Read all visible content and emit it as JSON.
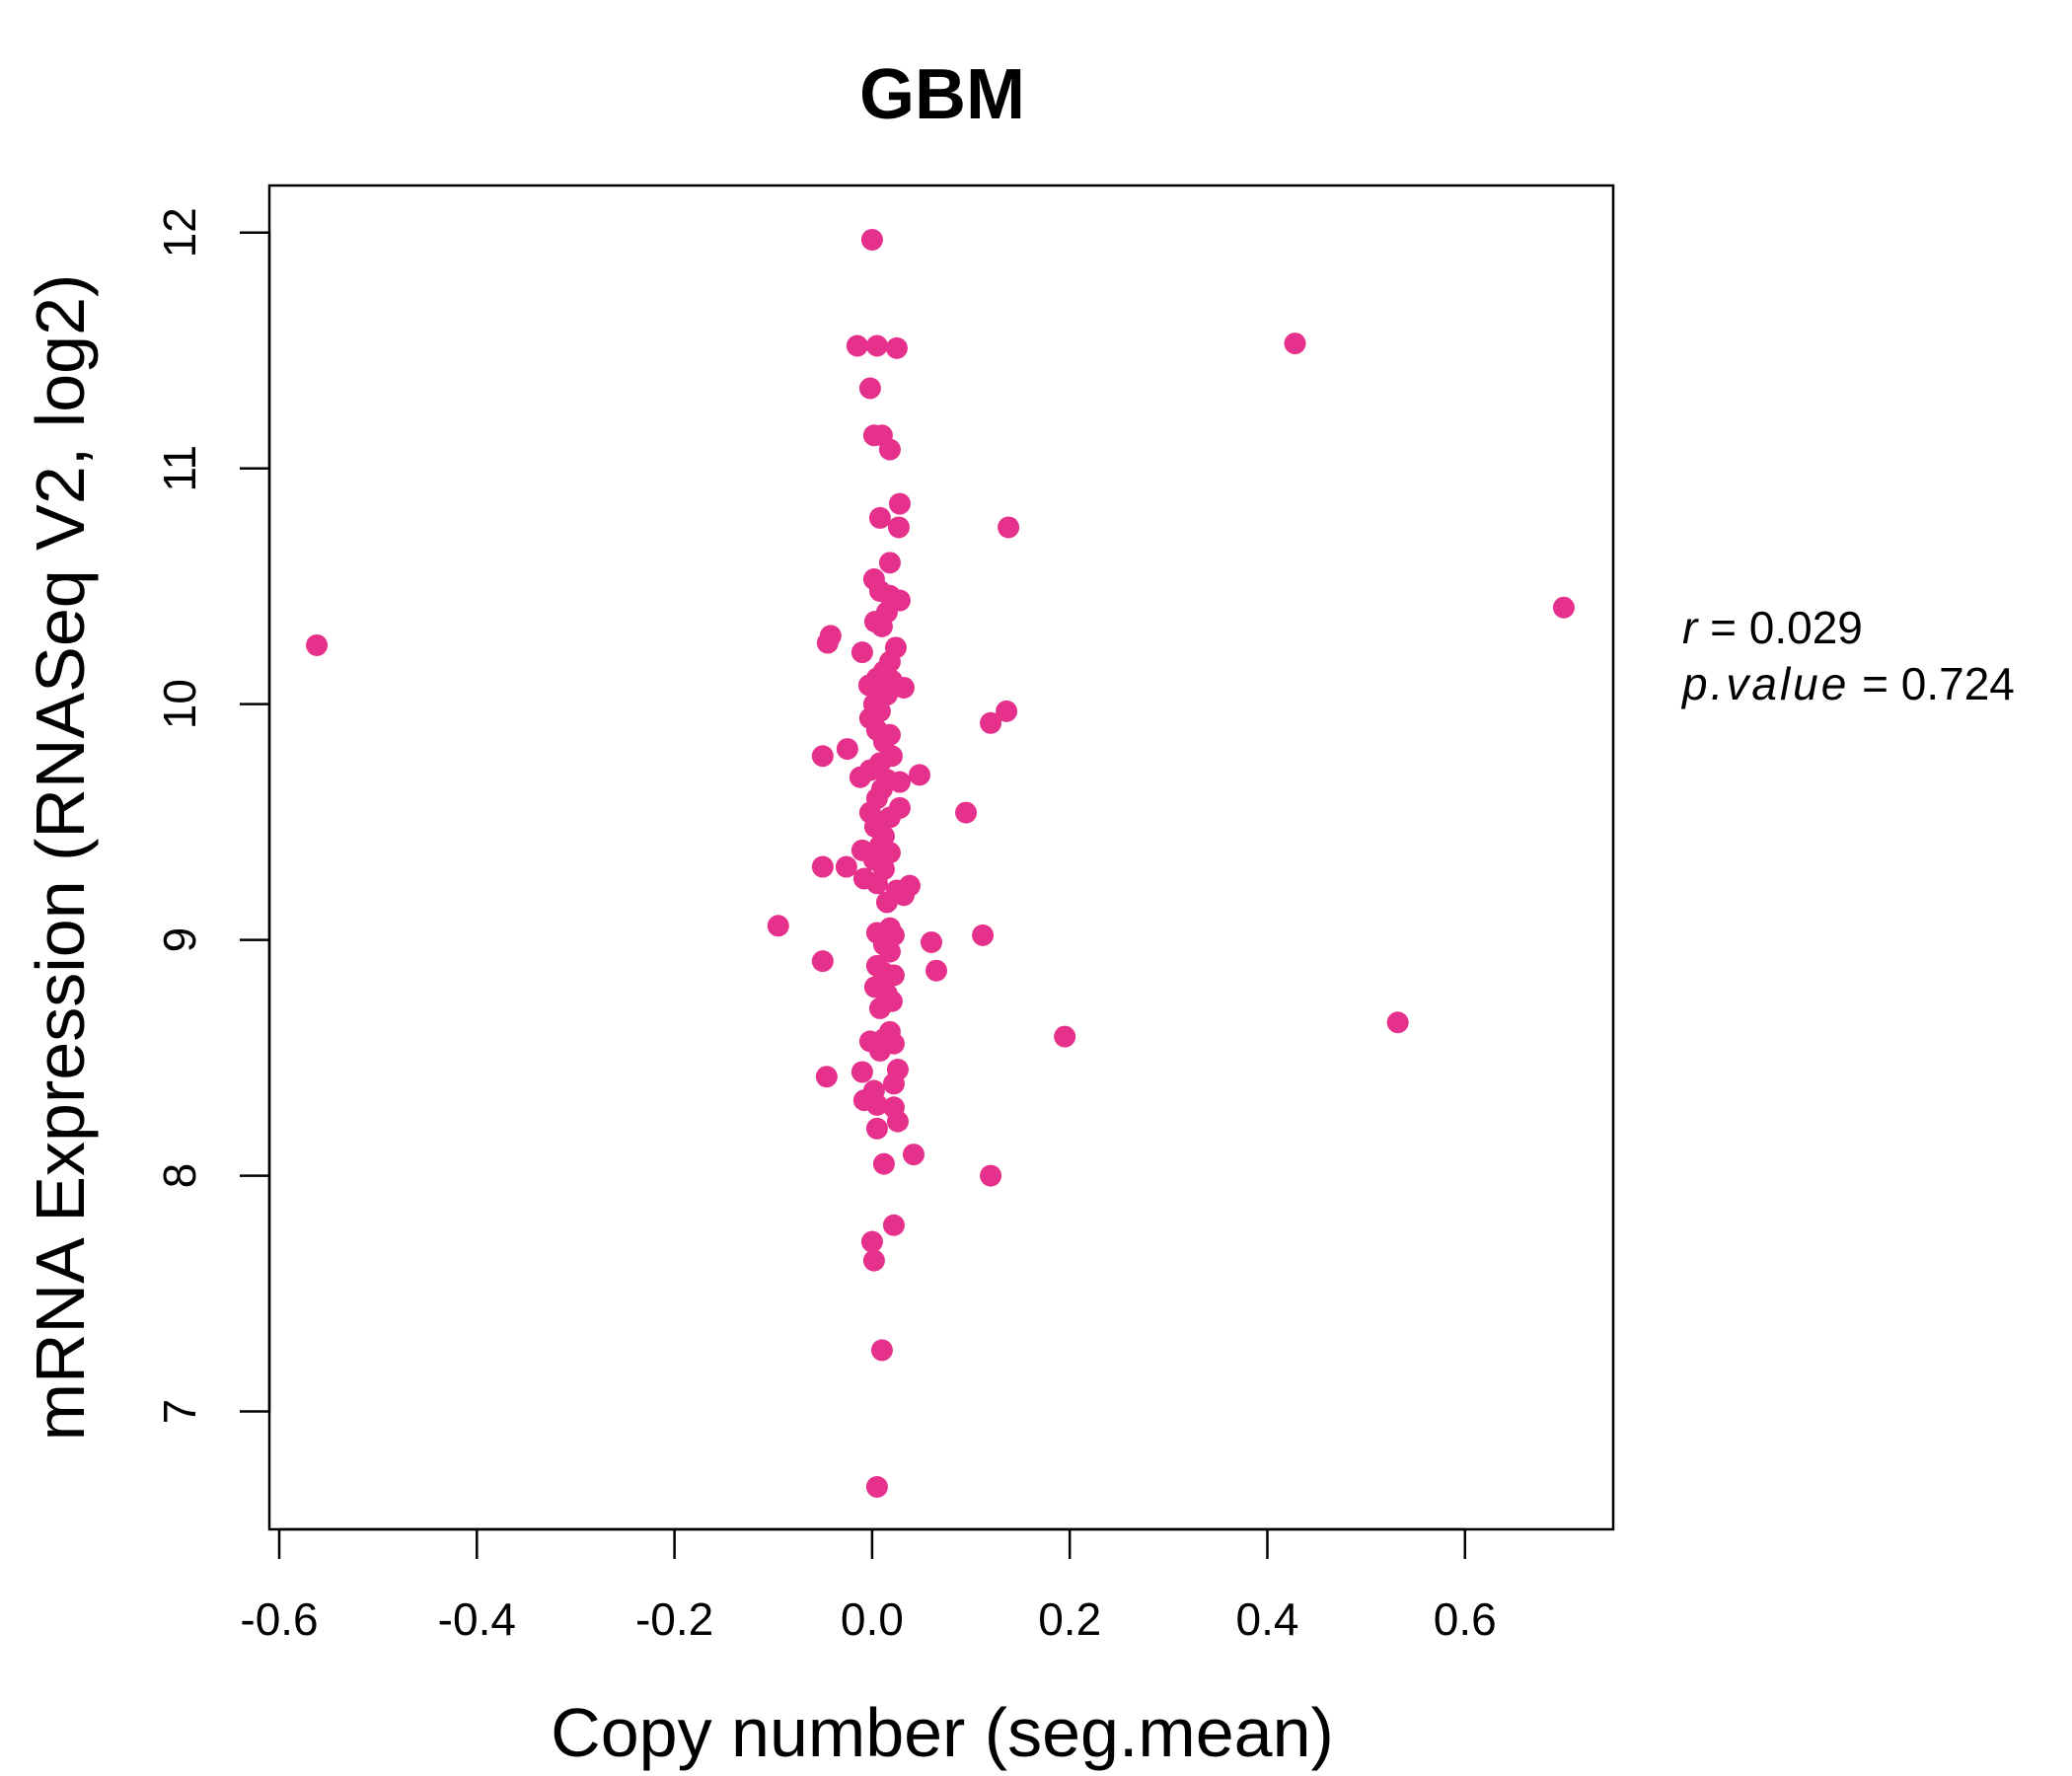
{
  "chart_data": {
    "type": "scatter",
    "title": "GBM",
    "title_color": "#E6318C",
    "point_color": "#E6318C",
    "xlabel": "Copy number (seg.mean)",
    "ylabel": "mRNA Expression (RNASeq V2, log2)",
    "xlim": [
      -0.61,
      0.75
    ],
    "ylim": [
      6.5,
      12.2
    ],
    "x_ticks": [
      "-0.6",
      "-0.4",
      "-0.2",
      "0.0",
      "0.2",
      "0.4",
      "0.6"
    ],
    "y_ticks": [
      "7",
      "8",
      "9",
      "10",
      "11",
      "12"
    ],
    "grid": false,
    "stats": {
      "r_label": "r",
      "r_value": "0.029",
      "p_label": "p.value",
      "p_value": "0.724"
    },
    "points": [
      {
        "x": -0.562,
        "y": 10.25
      },
      {
        "x": 0.0,
        "y": 11.97
      },
      {
        "x": -0.015,
        "y": 11.52
      },
      {
        "x": 0.005,
        "y": 11.52
      },
      {
        "x": 0.025,
        "y": 11.51
      },
      {
        "x": -0.002,
        "y": 11.34
      },
      {
        "x": 0.002,
        "y": 11.14
      },
      {
        "x": 0.01,
        "y": 11.14
      },
      {
        "x": 0.018,
        "y": 11.08
      },
      {
        "x": 0.028,
        "y": 10.85
      },
      {
        "x": 0.008,
        "y": 10.79
      },
      {
        "x": 0.027,
        "y": 10.75
      },
      {
        "x": 0.138,
        "y": 10.75
      },
      {
        "x": 0.018,
        "y": 10.6
      },
      {
        "x": 0.002,
        "y": 10.53
      },
      {
        "x": 0.008,
        "y": 10.48
      },
      {
        "x": 0.018,
        "y": 10.46
      },
      {
        "x": 0.028,
        "y": 10.44
      },
      {
        "x": 0.015,
        "y": 10.39
      },
      {
        "x": 0.003,
        "y": 10.35
      },
      {
        "x": 0.01,
        "y": 10.33
      },
      {
        "x": -0.042,
        "y": 10.29
      },
      {
        "x": -0.045,
        "y": 10.26
      },
      {
        "x": 0.024,
        "y": 10.24
      },
      {
        "x": -0.01,
        "y": 10.22
      },
      {
        "x": 0.018,
        "y": 10.18
      },
      {
        "x": 0.012,
        "y": 10.14
      },
      {
        "x": 0.005,
        "y": 10.11
      },
      {
        "x": 0.02,
        "y": 10.1
      },
      {
        "x": -0.003,
        "y": 10.08
      },
      {
        "x": 0.032,
        "y": 10.07
      },
      {
        "x": 0.015,
        "y": 10.04
      },
      {
        "x": 0.002,
        "y": 10.0
      },
      {
        "x": 0.008,
        "y": 9.97
      },
      {
        "x": 0.136,
        "y": 9.97
      },
      {
        "x": -0.002,
        "y": 9.94
      },
      {
        "x": 0.12,
        "y": 9.92
      },
      {
        "x": 0.005,
        "y": 9.89
      },
      {
        "x": 0.018,
        "y": 9.87
      },
      {
        "x": 0.012,
        "y": 9.84
      },
      {
        "x": -0.025,
        "y": 9.81
      },
      {
        "x": -0.05,
        "y": 9.78
      },
      {
        "x": 0.02,
        "y": 9.78
      },
      {
        "x": 0.008,
        "y": 9.75
      },
      {
        "x": -0.002,
        "y": 9.72
      },
      {
        "x": -0.012,
        "y": 9.69
      },
      {
        "x": 0.048,
        "y": 9.7
      },
      {
        "x": 0.015,
        "y": 9.68
      },
      {
        "x": 0.028,
        "y": 9.67
      },
      {
        "x": 0.01,
        "y": 9.64
      },
      {
        "x": 0.005,
        "y": 9.6
      },
      {
        "x": 0.028,
        "y": 9.56
      },
      {
        "x": -0.002,
        "y": 9.54
      },
      {
        "x": 0.095,
        "y": 9.54
      },
      {
        "x": 0.018,
        "y": 9.52
      },
      {
        "x": 0.003,
        "y": 9.48
      },
      {
        "x": 0.012,
        "y": 9.44
      },
      {
        "x": 0.008,
        "y": 9.4
      },
      {
        "x": -0.01,
        "y": 9.38
      },
      {
        "x": 0.018,
        "y": 9.37
      },
      {
        "x": 0.002,
        "y": 9.34
      },
      {
        "x": -0.05,
        "y": 9.31
      },
      {
        "x": -0.026,
        "y": 9.31
      },
      {
        "x": 0.012,
        "y": 9.3
      },
      {
        "x": -0.008,
        "y": 9.26
      },
      {
        "x": 0.005,
        "y": 9.24
      },
      {
        "x": 0.038,
        "y": 9.23
      },
      {
        "x": 0.025,
        "y": 9.21
      },
      {
        "x": 0.032,
        "y": 9.19
      },
      {
        "x": 0.015,
        "y": 9.16
      },
      {
        "x": -0.095,
        "y": 9.06
      },
      {
        "x": 0.018,
        "y": 9.05
      },
      {
        "x": 0.005,
        "y": 9.03
      },
      {
        "x": 0.022,
        "y": 9.02
      },
      {
        "x": 0.112,
        "y": 9.02
      },
      {
        "x": 0.06,
        "y": 8.99
      },
      {
        "x": 0.012,
        "y": 8.98
      },
      {
        "x": 0.018,
        "y": 8.95
      },
      {
        "x": -0.05,
        "y": 8.91
      },
      {
        "x": 0.005,
        "y": 8.89
      },
      {
        "x": 0.065,
        "y": 8.87
      },
      {
        "x": 0.012,
        "y": 8.86
      },
      {
        "x": 0.022,
        "y": 8.85
      },
      {
        "x": 0.003,
        "y": 8.8
      },
      {
        "x": 0.015,
        "y": 8.77
      },
      {
        "x": 0.02,
        "y": 8.74
      },
      {
        "x": 0.008,
        "y": 8.71
      },
      {
        "x": 0.532,
        "y": 8.65
      },
      {
        "x": 0.018,
        "y": 8.61
      },
      {
        "x": 0.195,
        "y": 8.59
      },
      {
        "x": 0.012,
        "y": 8.58
      },
      {
        "x": -0.002,
        "y": 8.57
      },
      {
        "x": 0.022,
        "y": 8.56
      },
      {
        "x": 0.008,
        "y": 8.53
      },
      {
        "x": 0.026,
        "y": 8.45
      },
      {
        "x": -0.01,
        "y": 8.44
      },
      {
        "x": -0.046,
        "y": 8.42
      },
      {
        "x": 0.022,
        "y": 8.39
      },
      {
        "x": 0.002,
        "y": 8.36
      },
      {
        "x": -0.008,
        "y": 8.32
      },
      {
        "x": 0.005,
        "y": 8.3
      },
      {
        "x": 0.022,
        "y": 8.29
      },
      {
        "x": 0.026,
        "y": 8.23
      },
      {
        "x": 0.005,
        "y": 8.2
      },
      {
        "x": 0.042,
        "y": 8.09
      },
      {
        "x": 0.012,
        "y": 8.05
      },
      {
        "x": 0.12,
        "y": 8.0
      },
      {
        "x": 0.022,
        "y": 7.79
      },
      {
        "x": 0.0,
        "y": 7.72
      },
      {
        "x": 0.002,
        "y": 7.64
      },
      {
        "x": 0.01,
        "y": 7.26
      },
      {
        "x": 0.005,
        "y": 6.68
      },
      {
        "x": 0.428,
        "y": 11.53
      },
      {
        "x": 0.7,
        "y": 10.41
      }
    ]
  }
}
